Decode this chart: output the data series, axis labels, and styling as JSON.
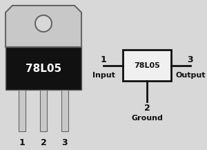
{
  "bg_color": "#d8d8d8",
  "chip_label": "78L05",
  "pin_labels_bottom": [
    "1",
    "2",
    "3"
  ],
  "pin1_label": "1",
  "pin2_label": "2",
  "pin3_label": "3",
  "input_label": "Input",
  "output_label": "Output",
  "ground_label": "Ground",
  "body_color": "#111111",
  "body_text_color": "#ffffff",
  "metal_color": "#c8c8c8",
  "metal_dark": "#888888",
  "metal_edge": "#666666",
  "box_color": "#f0f0f0",
  "box_border": "#111111",
  "line_color": "#111111",
  "pin_number_color": "#111111"
}
